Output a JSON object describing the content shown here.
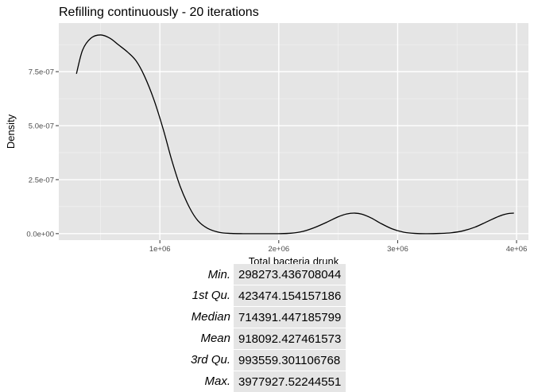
{
  "chart_data": {
    "type": "line",
    "title": "Refilling continuously - 20 iterations",
    "xlabel": "Total bacteria drunk",
    "ylabel": "Density",
    "xlim": [
      150000,
      4100000
    ],
    "ylim": [
      -3e-08,
      9.75e-07
    ],
    "x_ticks": [
      {
        "value": 1000000,
        "label": "1e+06"
      },
      {
        "value": 2000000,
        "label": "2e+06"
      },
      {
        "value": 3000000,
        "label": "3e+06"
      },
      {
        "value": 4000000,
        "label": "4e+06"
      }
    ],
    "y_ticks": [
      {
        "value": 0,
        "label": "0.0e+00"
      },
      {
        "value": 2.5e-07,
        "label": "2.5e-07"
      },
      {
        "value": 5e-07,
        "label": "5.0e-07"
      },
      {
        "value": 7.5e-07,
        "label": "7.5e-07"
      }
    ],
    "grid": true,
    "series": [
      {
        "color": "#000000",
        "x": [
          298273,
          350000,
          420000,
          500000,
          580000,
          650000,
          730000,
          800000,
          870000,
          950000,
          1030000,
          1100000,
          1170000,
          1250000,
          1320000,
          1400000,
          1500000,
          1600000,
          1700000,
          1800000,
          1900000,
          2000000,
          2100000,
          2200000,
          2300000,
          2400000,
          2500000,
          2570000,
          2640000,
          2700000,
          2780000,
          2850000,
          2950000,
          3050000,
          3150000,
          3250000,
          3350000,
          3450000,
          3550000,
          3650000,
          3750000,
          3850000,
          3920000,
          3977928
        ],
        "y": [
          7.4e-07,
          8.5e-07,
          9.05e-07,
          9.2e-07,
          9.05e-07,
          8.75e-07,
          8.4e-07,
          8e-07,
          7.3e-07,
          6.2e-07,
          4.8e-07,
          3.4e-07,
          2.2e-07,
          1.2e-07,
          6e-08,
          2.5e-08,
          6e-09,
          1e-09,
          0.0,
          0.0,
          0.0,
          0.0,
          2e-09,
          1e-08,
          2.8e-08,
          5.2e-08,
          7.8e-08,
          9.1e-08,
          9.5e-08,
          9e-08,
          7.2e-08,
          5e-08,
          2.3e-08,
          7e-09,
          1e-09,
          0.0,
          1e-09,
          4e-09,
          1.3e-08,
          3e-08,
          5.5e-08,
          8e-08,
          9.2e-08,
          9.5e-08
        ]
      }
    ]
  },
  "summary_table": {
    "rows": [
      {
        "label": "Min.",
        "value": "298273.436708044"
      },
      {
        "label": "1st Qu.",
        "value": "423474.154157186"
      },
      {
        "label": "Median",
        "value": "714391.447185799"
      },
      {
        "label": "Mean",
        "value": "918092.427461573"
      },
      {
        "label": "3rd Qu.",
        "value": "993559.301106768"
      },
      {
        "label": "Max.",
        "value": "3977927.52244551"
      }
    ]
  }
}
